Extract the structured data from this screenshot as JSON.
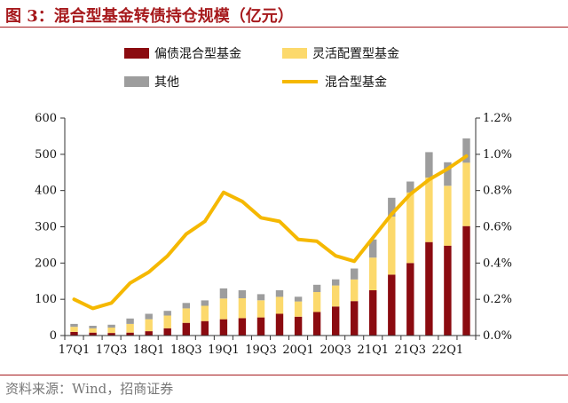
{
  "title": "图 3：混合型基金转债持仓规模（亿元）",
  "source": "资料来源：Wind，招商证券",
  "chart_data": {
    "type": "bar",
    "categories": [
      "17Q1",
      "17Q2",
      "17Q3",
      "17Q4",
      "18Q1",
      "18Q2",
      "18Q3",
      "18Q4",
      "19Q1",
      "19Q2",
      "19Q3",
      "19Q4",
      "20Q1",
      "20Q2",
      "20Q3",
      "20Q4",
      "21Q1",
      "21Q2",
      "21Q3",
      "21Q4",
      "22Q1",
      "22Q2"
    ],
    "tick_labels": [
      "17Q1",
      "17Q3",
      "18Q1",
      "18Q3",
      "19Q1",
      "19Q3",
      "20Q1",
      "20Q3",
      "21Q1",
      "21Q3",
      "22Q1"
    ],
    "stack_series": [
      {
        "name": "偏债混合型基金",
        "color": "#8b0b10",
        "values": [
          10,
          8,
          7,
          8,
          12,
          20,
          35,
          40,
          45,
          48,
          50,
          60,
          52,
          65,
          80,
          95,
          125,
          168,
          200,
          258,
          248,
          302
        ]
      },
      {
        "name": "灵活配置型基金",
        "color": "#fcd96c",
        "values": [
          14,
          12,
          15,
          24,
          33,
          35,
          40,
          42,
          57,
          55,
          47,
          47,
          42,
          55,
          58,
          60,
          90,
          160,
          195,
          178,
          165,
          175
        ]
      },
      {
        "name": "其他",
        "color": "#9d9d9d",
        "values": [
          8,
          7,
          8,
          15,
          15,
          13,
          15,
          15,
          28,
          22,
          17,
          18,
          13,
          20,
          17,
          30,
          50,
          52,
          30,
          70,
          65,
          67
        ]
      }
    ],
    "line_series": {
      "name": "混合型基金",
      "color": "#f5b800",
      "axis": "right",
      "values": [
        0.2,
        0.15,
        0.18,
        0.29,
        0.35,
        0.44,
        0.56,
        0.63,
        0.79,
        0.74,
        0.65,
        0.63,
        0.53,
        0.52,
        0.44,
        0.41,
        0.54,
        0.67,
        0.78,
        0.86,
        0.92,
        0.99
      ]
    },
    "y_left": {
      "min": 0,
      "max": 600,
      "ticks": [
        "0",
        "100",
        "200",
        "300",
        "400",
        "500",
        "600"
      ]
    },
    "y_right": {
      "min": 0,
      "max": 1.2,
      "ticks": [
        "0.0%",
        "0.2%",
        "0.4%",
        "0.6%",
        "0.8%",
        "1.0%",
        "1.2%"
      ]
    },
    "legend": {
      "position": "top",
      "entries": [
        "偏债混合型基金",
        "灵活配置型基金",
        "其他",
        "混合型基金"
      ]
    },
    "grid": false
  }
}
